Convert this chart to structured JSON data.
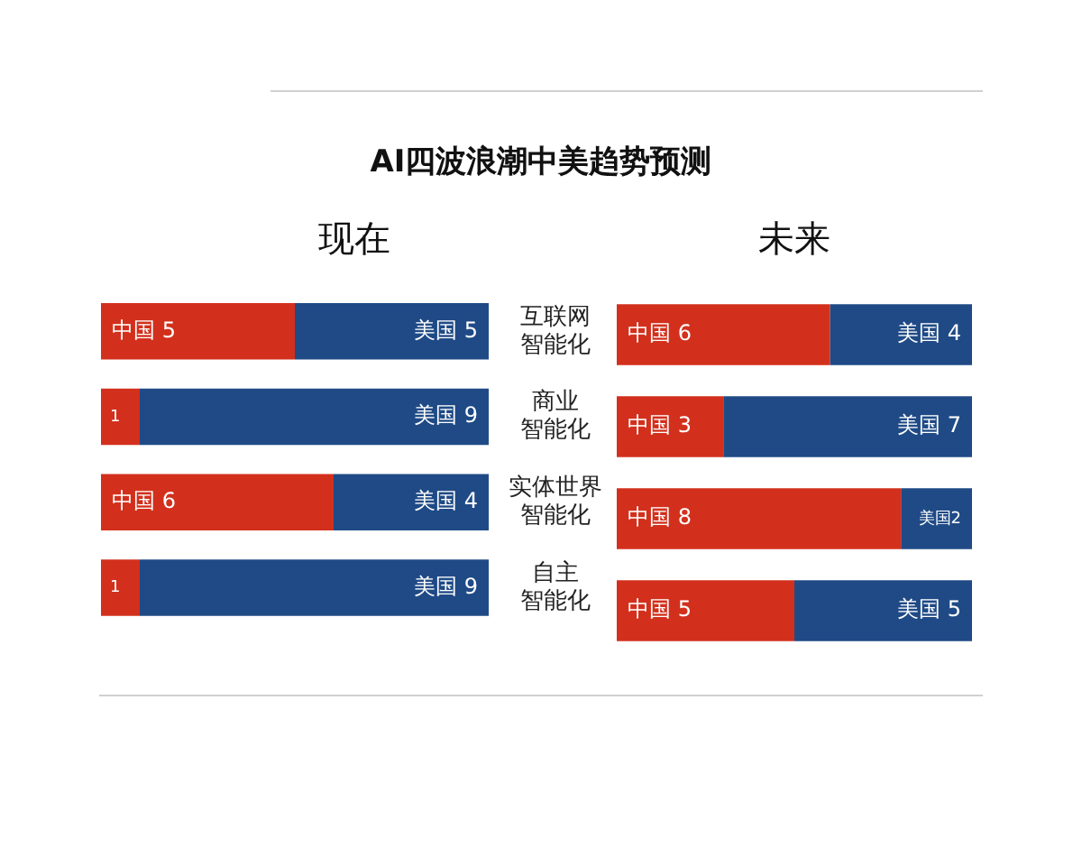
{
  "chart_data": [
    {
      "type": "other",
      "title": "AI四波浪潮中美趋势预测"
    },
    {
      "type": "bar",
      "title": "现在",
      "orientation": "horizontal",
      "stacked": true,
      "tick_labels": "y",
      "categories": [
        "互联网智能化",
        "商业智能化",
        "实体世界智能化",
        "自主智能化"
      ],
      "series": [
        {
          "color": "#d2301c",
          "values": [
            5,
            1,
            6,
            1
          ],
          "value_labels": [
            "中国 5",
            "1",
            "中国 6",
            "1"
          ]
        },
        {
          "color": "#1f4a86",
          "values": [
            5,
            9,
            4,
            9
          ],
          "value_labels": [
            "美国 5",
            "美国 9",
            "美国 4",
            "美国 9"
          ]
        }
      ]
    },
    {
      "type": "bar",
      "title": "未来",
      "orientation": "horizontal",
      "stacked": true,
      "tick_labels": false,
      "categories": [
        "互联网智能化",
        "商业智能化",
        "实体世界智能化",
        "自主智能化"
      ],
      "series": [
        {
          "color": "#d2301c",
          "values": [
            6,
            3,
            8,
            5
          ],
          "value_labels": [
            "中国 6",
            "中国 3",
            "中国 8",
            "中国 5"
          ]
        },
        {
          "color": "#1f4a86",
          "values": [
            4,
            7,
            2,
            5
          ],
          "value_labels": [
            "美国 4",
            "美国 7",
            "美国2",
            "美国 5"
          ]
        }
      ]
    }
  ]
}
